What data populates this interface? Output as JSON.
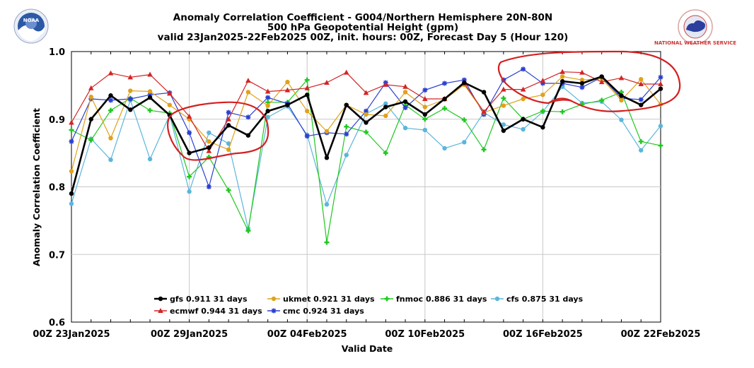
{
  "header": {
    "title_line1": "Anomaly Correlation Coefficient - G004/Northern Hemisphere 20N-80N",
    "title_line2": "500 hPa Geopotential Height (gpm)",
    "title_line3": "valid 23Jan2025-22Feb2025 00Z, init. hours: 00Z, Forecast Day 5 (Hour 120)"
  },
  "logos": {
    "left": "NOAA",
    "right": "NATIONAL WEATHER SERVICE"
  },
  "colors": {
    "annotation": "#d42020",
    "grid": "#c8c8c8"
  },
  "chart_data": {
    "type": "line",
    "title": "Anomaly Correlation Coefficient - G004/Northern Hemisphere 20N-80N",
    "xlabel": "Valid Date",
    "ylabel": "Anomaly Correlation Coefficient",
    "ylim": [
      0.6,
      1.0
    ],
    "yticks": [
      "0.6",
      "0.7",
      "0.8",
      "0.9",
      "1.0"
    ],
    "xtick_labels": [
      "00Z 23Jan2025",
      "00Z 29Jan2025",
      "00Z 04Feb2025",
      "00Z 10Feb2025",
      "00Z 16Feb2025",
      "00Z 22Feb2025"
    ],
    "xtick_index": [
      0,
      6,
      12,
      18,
      24,
      30
    ],
    "x_days": 31,
    "grid": true,
    "legend_position": "bottom-left",
    "series": [
      {
        "key": "gfs",
        "name": "gfs",
        "score": "0.911",
        "days": "31 days",
        "color": "#000000",
        "marker": "circle",
        "width": 2.6,
        "values": [
          0.79,
          0.9,
          0.935,
          0.914,
          0.932,
          0.906,
          0.85,
          0.858,
          0.891,
          0.876,
          0.912,
          0.921,
          0.936,
          0.843,
          0.921,
          0.895,
          0.918,
          0.926,
          0.907,
          0.93,
          0.954,
          0.94,
          0.883,
          0.9,
          0.888,
          0.956,
          0.953,
          0.963,
          0.935,
          0.921,
          0.945
        ]
      },
      {
        "key": "ecmwf",
        "name": "ecmwf",
        "score": "0.944",
        "days": "31 days",
        "color": "#d32424",
        "marker": "triangle",
        "width": 1.2,
        "values": [
          0.895,
          0.946,
          0.968,
          0.962,
          0.966,
          0.938,
          0.904,
          0.853,
          0.9,
          0.957,
          0.941,
          0.943,
          0.946,
          0.954,
          0.969,
          0.939,
          0.951,
          0.948,
          0.93,
          0.93,
          0.953,
          0.911,
          0.944,
          0.944,
          0.957,
          0.97,
          0.969,
          0.955,
          0.961,
          0.952,
          0.952
        ]
      },
      {
        "key": "ukmet",
        "name": "ukmet",
        "score": "0.921",
        "days": "31 days",
        "color": "#e0a21a",
        "marker": "circle",
        "width": 1.2,
        "values": [
          0.823,
          0.933,
          0.872,
          0.942,
          0.941,
          0.921,
          0.9,
          0.867,
          0.855,
          0.94,
          0.92,
          0.955,
          0.912,
          0.882,
          0.921,
          0.907,
          0.905,
          0.94,
          0.918,
          0.929,
          0.951,
          0.91,
          0.92,
          0.93,
          0.936,
          0.963,
          0.958,
          0.96,
          0.928,
          0.959,
          0.922
        ]
      },
      {
        "key": "cmc",
        "name": "cmc",
        "score": "0.924",
        "days": "31 days",
        "color": "#2b3fd1",
        "marker": "star",
        "width": 1.2,
        "values": [
          0.867,
          0.93,
          0.928,
          0.93,
          0.936,
          0.939,
          0.88,
          0.8,
          0.91,
          0.903,
          0.932,
          0.923,
          0.875,
          0.88,
          0.878,
          0.912,
          0.954,
          0.917,
          0.943,
          0.953,
          0.958,
          0.907,
          0.958,
          0.974,
          0.953,
          0.953,
          0.947,
          0.962,
          0.931,
          0.929,
          0.962
        ]
      },
      {
        "key": "fnmoc",
        "name": "fnmoc",
        "score": "0.886",
        "days": "31 days",
        "color": "#1fc81f",
        "marker": "plus",
        "width": 1.2,
        "values": [
          0.884,
          0.869,
          0.913,
          0.931,
          0.913,
          0.909,
          0.815,
          0.844,
          0.795,
          0.735,
          0.925,
          0.925,
          0.958,
          0.718,
          0.889,
          0.881,
          0.85,
          0.921,
          0.9,
          0.916,
          0.899,
          0.855,
          0.931,
          0.9,
          0.912,
          0.911,
          0.922,
          0.928,
          0.94,
          0.867,
          0.861
        ]
      },
      {
        "key": "cfs",
        "name": "cfs",
        "score": "0.875",
        "days": "31 days",
        "color": "#5bb6dc",
        "marker": "circle",
        "width": 1.2,
        "values": [
          0.775,
          0.871,
          0.84,
          0.928,
          0.841,
          0.906,
          0.793,
          0.88,
          0.864,
          0.738,
          0.903,
          0.919,
          0.877,
          0.774,
          0.847,
          0.908,
          0.923,
          0.887,
          0.884,
          0.857,
          0.866,
          0.91,
          0.892,
          0.885,
          0.911,
          0.948,
          0.924,
          0.926,
          0.899,
          0.854,
          0.89
        ]
      }
    ]
  }
}
